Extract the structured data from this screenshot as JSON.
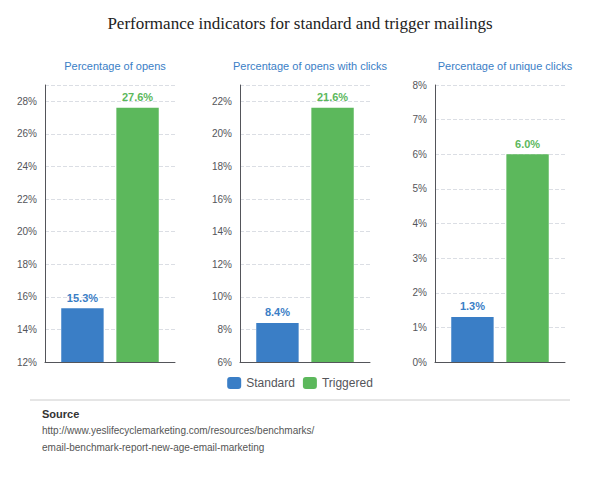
{
  "title": "Performance indicators for standard and trigger mailings",
  "legend": "bottom",
  "annotations": [
    "Source",
    "http://www.yeslifecyclemarketing.com/resources/benchmarks/",
    "email-benchmark-report-new-age-email-marketing"
  ],
  "chart_data": [
    {
      "type": "bar",
      "subtitle": "Percentage of opens",
      "categories": [
        null
      ],
      "series": [
        {
          "name": "Standard",
          "color": "#3A7EC6",
          "values": [
            15.3
          ],
          "value_labels": [
            "15.3%"
          ]
        },
        {
          "name": "Triggered",
          "color": "#5CB85C",
          "values": [
            27.6
          ],
          "value_labels": [
            "27.6%"
          ]
        }
      ],
      "ylim": [
        12,
        29
      ],
      "yticks": [
        {
          "value": 12,
          "label": "12%"
        },
        {
          "value": 14,
          "label": "14%"
        },
        {
          "value": 16,
          "label": "16%"
        },
        {
          "value": 18,
          "label": "18%"
        },
        {
          "value": 20,
          "label": "20%"
        },
        {
          "value": 22,
          "label": "22%"
        },
        {
          "value": 24,
          "label": "24%"
        },
        {
          "value": 26,
          "label": "26%"
        },
        {
          "value": 28,
          "label": "28%"
        }
      ],
      "grid": true,
      "data_labels": true,
      "tick_labels": "y"
    },
    {
      "type": "bar",
      "subtitle": "Percentage of opens with clicks",
      "categories": [
        null
      ],
      "series": [
        {
          "name": "Standard",
          "color": "#3A7EC6",
          "values": [
            8.4
          ],
          "value_labels": [
            "8.4%"
          ]
        },
        {
          "name": "Triggered",
          "color": "#5CB85C",
          "values": [
            21.6
          ],
          "value_labels": [
            "21.6%"
          ]
        }
      ],
      "ylim": [
        6,
        23
      ],
      "yticks": [
        {
          "value": 6,
          "label": "6%"
        },
        {
          "value": 8,
          "label": "8%"
        },
        {
          "value": 10,
          "label": "10%"
        },
        {
          "value": 12,
          "label": "12%"
        },
        {
          "value": 14,
          "label": "14%"
        },
        {
          "value": 16,
          "label": "16%"
        },
        {
          "value": 18,
          "label": "18%"
        },
        {
          "value": 20,
          "label": "20%"
        },
        {
          "value": 22,
          "label": "22%"
        }
      ],
      "grid": true,
      "data_labels": true,
      "tick_labels": "y"
    },
    {
      "type": "bar",
      "subtitle": "Percentage of unique clicks",
      "categories": [
        null
      ],
      "series": [
        {
          "name": "Standard",
          "color": "#3A7EC6",
          "values": [
            1.3
          ],
          "value_labels": [
            "1.3%"
          ]
        },
        {
          "name": "Triggered",
          "color": "#5CB85C",
          "values": [
            6.0
          ],
          "value_labels": [
            "6.0%"
          ]
        }
      ],
      "ylim": [
        0,
        8
      ],
      "yticks": [
        {
          "value": 0,
          "label": "0%"
        },
        {
          "value": 1,
          "label": "1%"
        },
        {
          "value": 2,
          "label": "2%"
        },
        {
          "value": 3,
          "label": "3%"
        },
        {
          "value": 4,
          "label": "4%"
        },
        {
          "value": 5,
          "label": "5%"
        },
        {
          "value": 6,
          "label": "6%"
        },
        {
          "value": 7,
          "label": "7%"
        },
        {
          "value": 8,
          "label": "8%"
        }
      ],
      "grid": true,
      "data_labels": true,
      "tick_labels": "y"
    }
  ]
}
